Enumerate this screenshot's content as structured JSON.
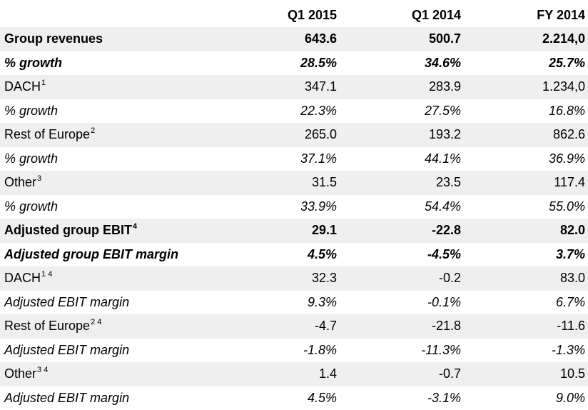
{
  "columns": [
    "Q1 2015",
    "Q1 2014",
    "FY 2014"
  ],
  "rows": [
    {
      "label": "Group revenues",
      "sup": "",
      "values": [
        "643.6",
        "500.7",
        "2.214,0"
      ],
      "style": "bold"
    },
    {
      "label": "% growth",
      "sup": "",
      "values": [
        "28.5%",
        "34.6%",
        "25.7%"
      ],
      "style": "bold-italic"
    },
    {
      "label": "DACH",
      "sup": "1",
      "values": [
        "347.1",
        "283.9",
        "1.234,0"
      ],
      "style": "normal"
    },
    {
      "label": "% growth",
      "sup": "",
      "values": [
        "22.3%",
        "27.5%",
        "16.8%"
      ],
      "style": "italic"
    },
    {
      "label": "Rest of Europe",
      "sup": "2",
      "values": [
        "265.0",
        "193.2",
        "862.6"
      ],
      "style": "normal"
    },
    {
      "label": "% growth",
      "sup": "",
      "values": [
        "37.1%",
        "44.1%",
        "36.9%"
      ],
      "style": "italic"
    },
    {
      "label": "Other",
      "sup": "3",
      "values": [
        "31.5",
        "23.5",
        "117.4"
      ],
      "style": "normal"
    },
    {
      "label": "% growth",
      "sup": "",
      "values": [
        "33.9%",
        "54.4%",
        "55.0%"
      ],
      "style": "italic"
    },
    {
      "label": "Adjusted group EBIT",
      "sup": "4",
      "values": [
        "29.1",
        "-22.8",
        "82.0"
      ],
      "style": "bold"
    },
    {
      "label": "Adjusted group EBIT margin",
      "sup": "",
      "values": [
        "4.5%",
        "-4.5%",
        "3.7%"
      ],
      "style": "bold-italic"
    },
    {
      "label": "DACH",
      "sup": "1 4",
      "values": [
        "32.3",
        "-0.2",
        "83.0"
      ],
      "style": "normal"
    },
    {
      "label": "Adjusted EBIT margin",
      "sup": "",
      "values": [
        "9.3%",
        "-0.1%",
        "6.7%"
      ],
      "style": "italic"
    },
    {
      "label": "Rest of Europe",
      "sup": "2 4",
      "values": [
        "-4.7",
        "-21.8",
        "-11.6"
      ],
      "style": "normal"
    },
    {
      "label": "Adjusted EBIT margin",
      "sup": "",
      "values": [
        "-1.8%",
        "-11.3%",
        "-1.3%"
      ],
      "style": "italic"
    },
    {
      "label": "Other",
      "sup": "3 4",
      "values": [
        "1.4",
        "-0.7",
        "10.5"
      ],
      "style": "normal"
    },
    {
      "label": "Adjusted EBIT margin",
      "sup": "",
      "values": [
        "4.5%",
        "-3.1%",
        "9.0%"
      ],
      "style": "italic"
    }
  ]
}
